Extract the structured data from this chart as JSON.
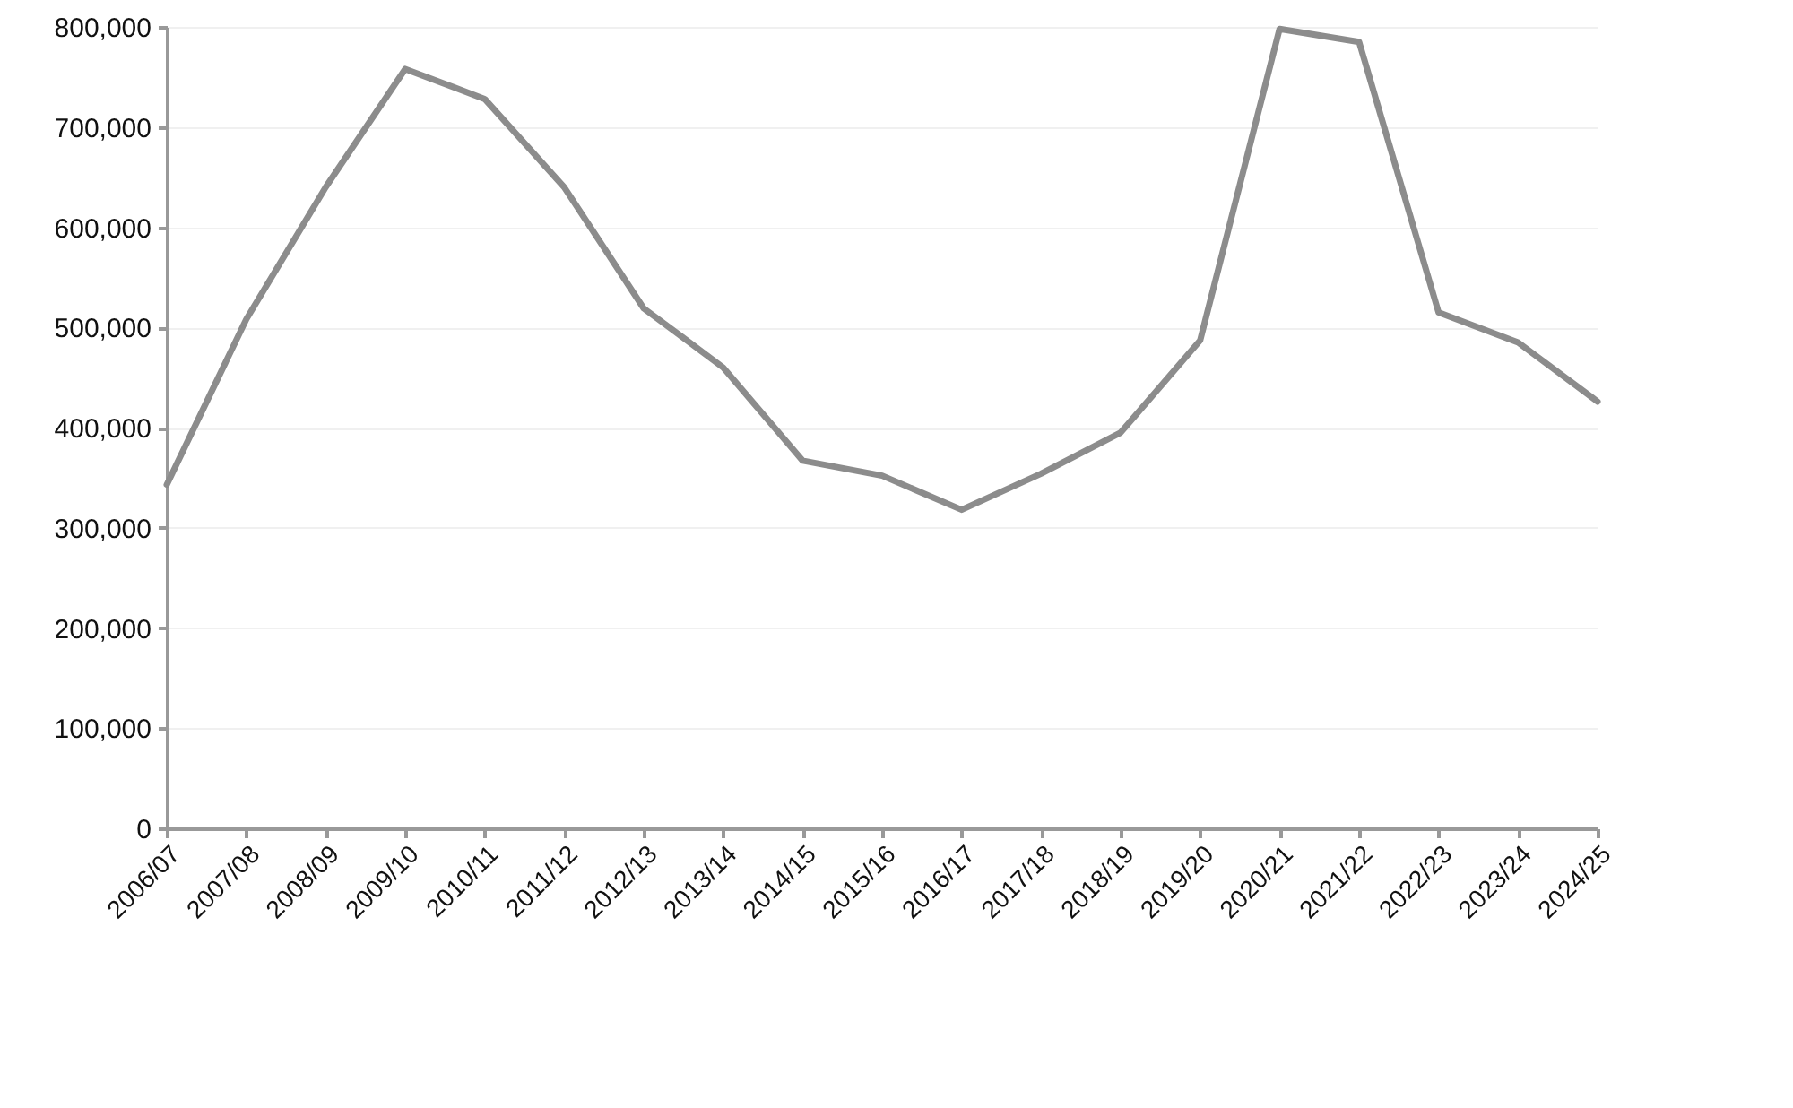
{
  "chart_data": {
    "type": "line",
    "categories": [
      "2006/07",
      "2007/08",
      "2008/09",
      "2009/10",
      "2010/11",
      "2011/12",
      "2012/13",
      "2013/14",
      "2014/15",
      "2015/16",
      "2016/17",
      "2017/18",
      "2018/19",
      "2019/20",
      "2020/21",
      "2021/22",
      "2022/23",
      "2023/24",
      "2024/25"
    ],
    "series": [
      {
        "color": "#8c8c8c",
        "values": [
          343000,
          508000,
          640000,
          758000,
          728000,
          640000,
          519000,
          460000,
          367000,
          352000,
          318000,
          354000,
          395000,
          487000,
          798000,
          785000,
          515000,
          485000,
          426000
        ]
      }
    ],
    "ylim": [
      0,
      800000
    ],
    "yticks": [
      0,
      {
        "value": 100000,
        "label": "100,000"
      },
      {
        "value": 200000,
        "label": "200,000"
      },
      {
        "value": 300000,
        "label": "300,000"
      },
      {
        "value": 400000,
        "label": "400,000"
      },
      {
        "value": 500000,
        "label": "500,000"
      },
      {
        "value": 600000,
        "label": "600,000"
      },
      {
        "value": 700000,
        "label": "700,000"
      },
      {
        "value": 800000,
        "label": "800,000"
      }
    ],
    "grid": "y",
    "marker": "none",
    "line_style": "solid"
  }
}
